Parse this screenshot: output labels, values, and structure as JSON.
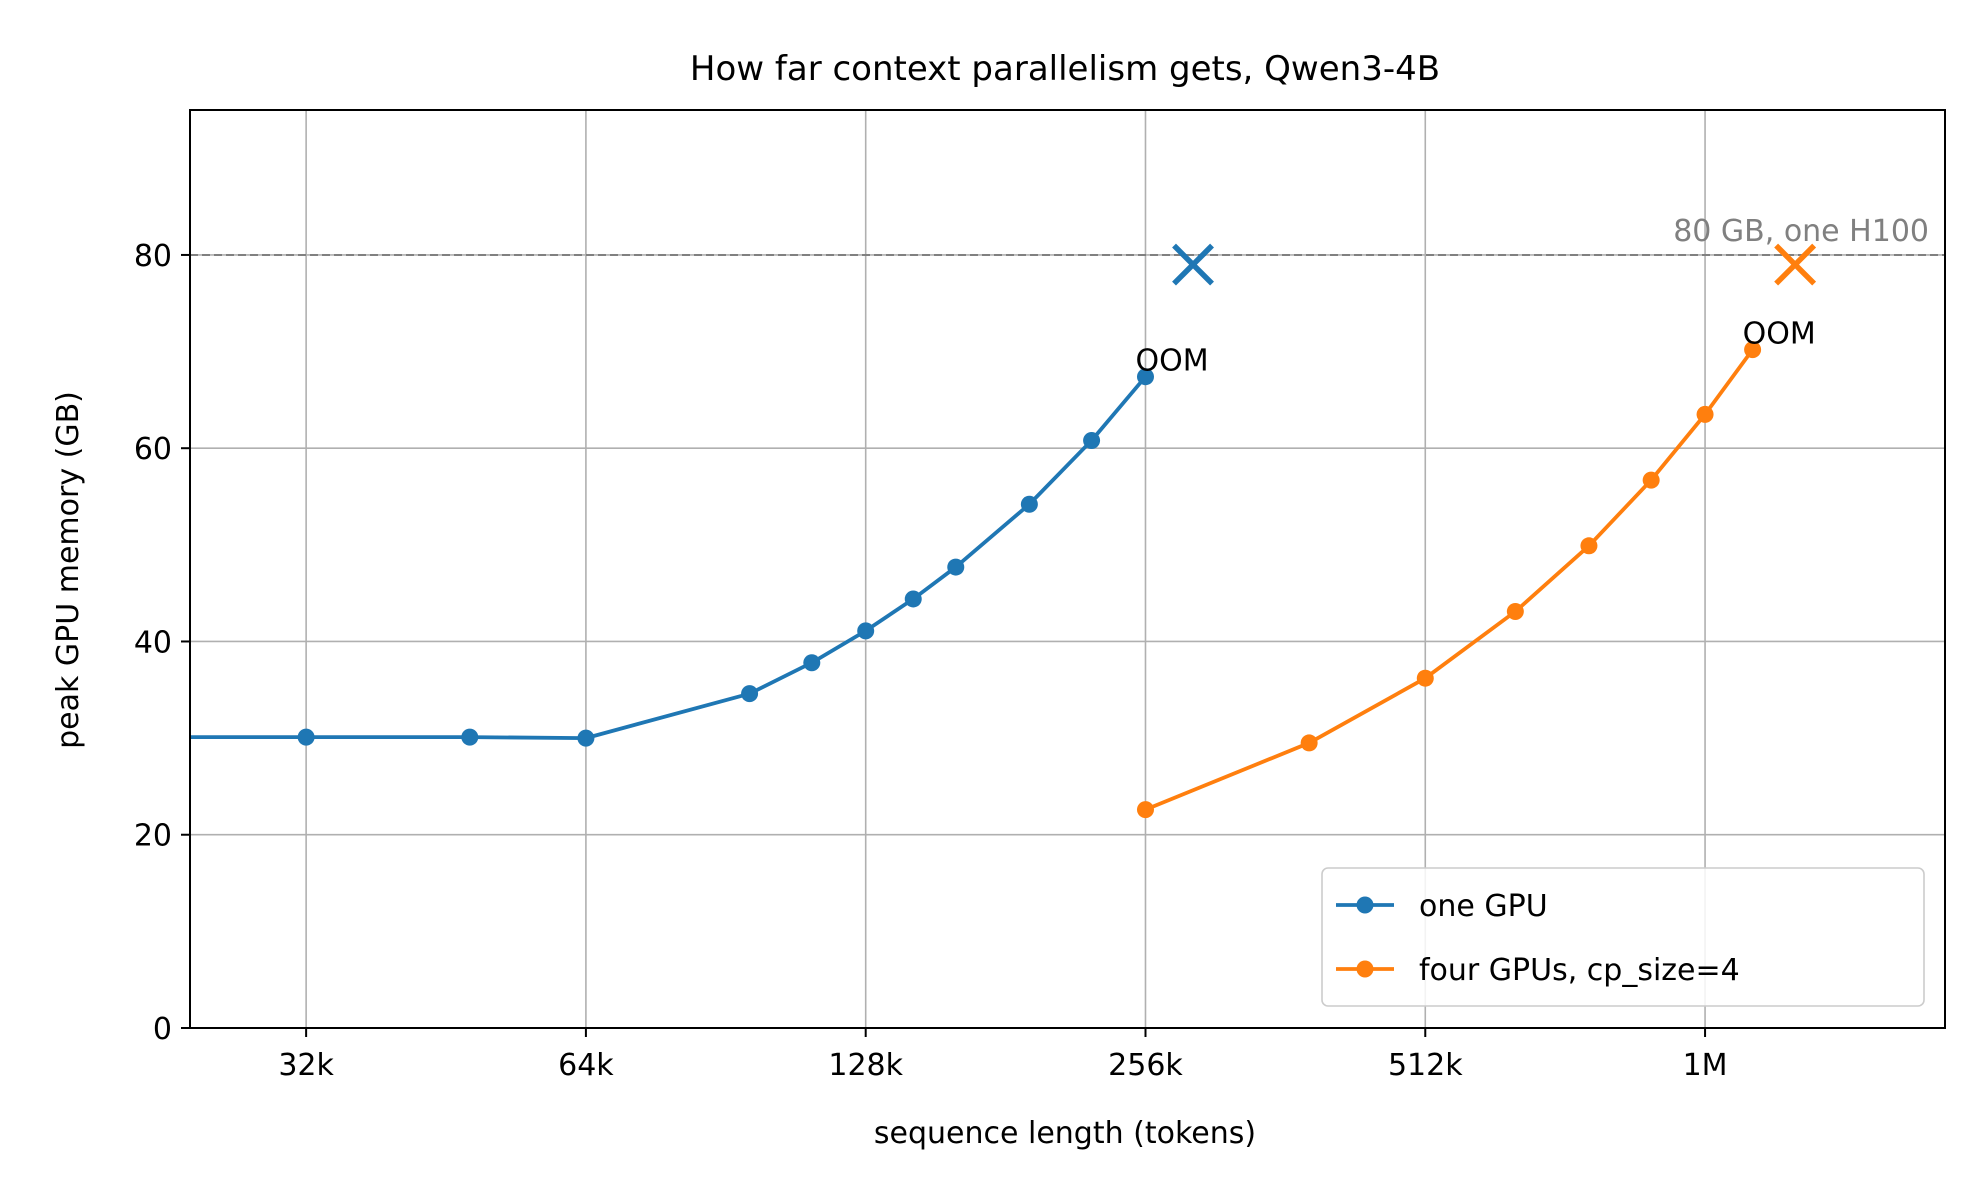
{
  "chart_data": {
    "type": "line",
    "title": "How far context parallelism gets, Qwen3-4B",
    "xlabel": "sequence length (tokens)",
    "ylabel": "peak GPU memory (GB)",
    "x_scale": "log2",
    "xlim": [
      24576,
      1900000
    ],
    "ylim": [
      0,
      95
    ],
    "x_ticks": [
      {
        "value": 32768,
        "label": "32k"
      },
      {
        "value": 65536,
        "label": "64k"
      },
      {
        "value": 131072,
        "label": "128k"
      },
      {
        "value": 262144,
        "label": "256k"
      },
      {
        "value": 524288,
        "label": "512k"
      },
      {
        "value": 1048576,
        "label": "1M"
      }
    ],
    "y_ticks": [
      {
        "value": 0,
        "label": "0"
      },
      {
        "value": 20,
        "label": "20"
      },
      {
        "value": 40,
        "label": "40"
      },
      {
        "value": 60,
        "label": "60"
      },
      {
        "value": 80,
        "label": "80"
      }
    ],
    "grid": true,
    "legend_position": "lower-right",
    "reference_line": {
      "y": 80,
      "label": "80 GB, one H100",
      "color": "#808080"
    },
    "series": [
      {
        "name": "one GPU",
        "color": "#1f77b4",
        "points": [
          {
            "x": 20000,
            "y": 30.1
          },
          {
            "x": 32768,
            "y": 30.1
          },
          {
            "x": 49152,
            "y": 30.1
          },
          {
            "x": 65536,
            "y": 30.0
          },
          {
            "x": 98304,
            "y": 34.6
          },
          {
            "x": 114688,
            "y": 37.8
          },
          {
            "x": 131072,
            "y": 41.1
          },
          {
            "x": 147456,
            "y": 44.4
          },
          {
            "x": 163840,
            "y": 47.7
          },
          {
            "x": 196608,
            "y": 54.2
          },
          {
            "x": 229376,
            "y": 60.8
          },
          {
            "x": 262144,
            "y": 67.4
          }
        ],
        "oom": {
          "x": 294912,
          "y": 79,
          "label": "OOM"
        }
      },
      {
        "name": "four GPUs, cp_size=4",
        "color": "#ff7f0e",
        "points": [
          {
            "x": 262144,
            "y": 22.6
          },
          {
            "x": 393216,
            "y": 29.5
          },
          {
            "x": 524288,
            "y": 36.2
          },
          {
            "x": 655360,
            "y": 43.1
          },
          {
            "x": 786432,
            "y": 49.9
          },
          {
            "x": 917504,
            "y": 56.7
          },
          {
            "x": 1048576,
            "y": 63.5
          },
          {
            "x": 1179648,
            "y": 70.2
          }
        ],
        "oom": {
          "x": 1310720,
          "y": 79,
          "label": "OOM"
        }
      }
    ]
  }
}
